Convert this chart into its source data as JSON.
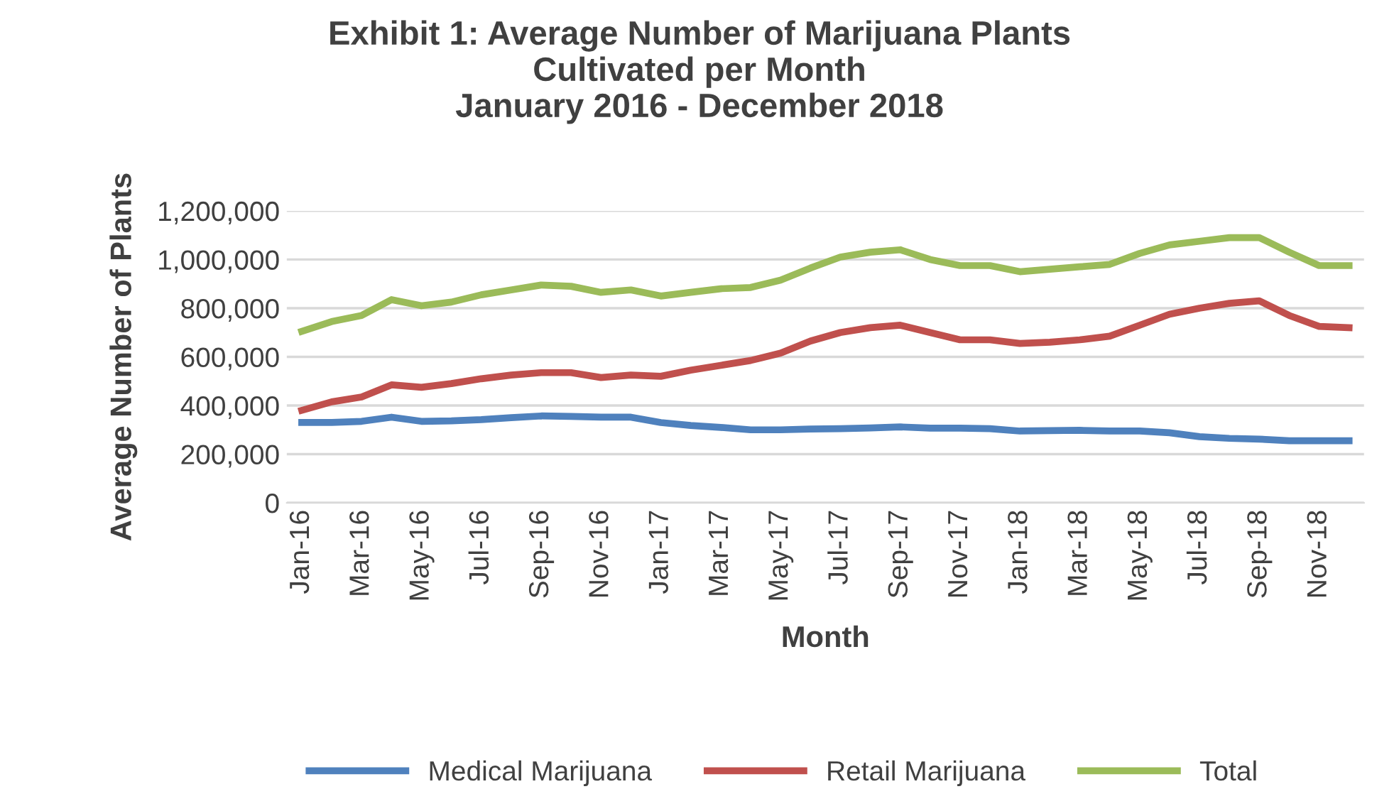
{
  "chart_data": {
    "type": "line",
    "title": "Exhibit 1: Average Number of Marijuana Plants\nCultivated per Month\nJanuary 2016 - December 2018",
    "xlabel": "Month",
    "ylabel": "Average Number of Plants",
    "categories": [
      "Jan-16",
      null,
      "Mar-16",
      null,
      "May-16",
      null,
      "Jul-16",
      null,
      "Sep-16",
      null,
      "Nov-16",
      null,
      "Jan-17",
      null,
      "Mar-17",
      null,
      "May-17",
      null,
      "Jul-17",
      null,
      "Sep-17",
      null,
      "Nov-17",
      null,
      "Jan-18",
      null,
      "Mar-18",
      null,
      "May-18",
      null,
      "Jul-18",
      null,
      "Sep-18",
      null,
      "Nov-18",
      null
    ],
    "series": [
      {
        "name": "Medical Marijuana",
        "color": "#4f81bd",
        "values": [
          330000,
          330000,
          335000,
          352000,
          335000,
          337000,
          342000,
          350000,
          357000,
          355000,
          352000,
          352000,
          330000,
          318000,
          310000,
          300000,
          300000,
          303000,
          305000,
          308000,
          312000,
          307000,
          307000,
          305000,
          295000,
          297000,
          298000,
          295000,
          295000,
          288000,
          272000,
          265000,
          262000,
          255000,
          255000,
          255000
        ]
      },
      {
        "name": "Retail Marijuana",
        "color": "#c0504d",
        "values": [
          380000,
          415000,
          435000,
          485000,
          475000,
          490000,
          510000,
          525000,
          535000,
          535000,
          515000,
          525000,
          520000,
          545000,
          565000,
          585000,
          615000,
          665000,
          700000,
          720000,
          730000,
          700000,
          670000,
          670000,
          655000,
          660000,
          670000,
          685000,
          730000,
          775000,
          800000,
          820000,
          830000,
          770000,
          725000,
          720000
        ]
      },
      {
        "name": "Total",
        "color": "#9bbb59",
        "values": [
          705000,
          745000,
          770000,
          835000,
          810000,
          825000,
          855000,
          875000,
          895000,
          890000,
          865000,
          875000,
          850000,
          865000,
          880000,
          885000,
          915000,
          965000,
          1010000,
          1030000,
          1040000,
          1000000,
          975000,
          975000,
          950000,
          960000,
          970000,
          980000,
          1025000,
          1060000,
          1075000,
          1090000,
          1090000,
          1030000,
          975000,
          975000
        ]
      }
    ],
    "ylim": [
      0,
      1200000
    ],
    "yticks": [
      0,
      {
        "value": 200000,
        "label": "200,000"
      },
      {
        "value": 400000,
        "label": "400,000"
      },
      {
        "value": 600000,
        "label": "600,000"
      },
      {
        "value": 800000,
        "label": "800,000"
      },
      {
        "value": 1000000,
        "label": "1,000,000"
      },
      {
        "value": 1200000,
        "label": "1,200,000"
      }
    ],
    "grid": "y",
    "legend": "bottom",
    "marker": "none",
    "line_style": "solid"
  }
}
